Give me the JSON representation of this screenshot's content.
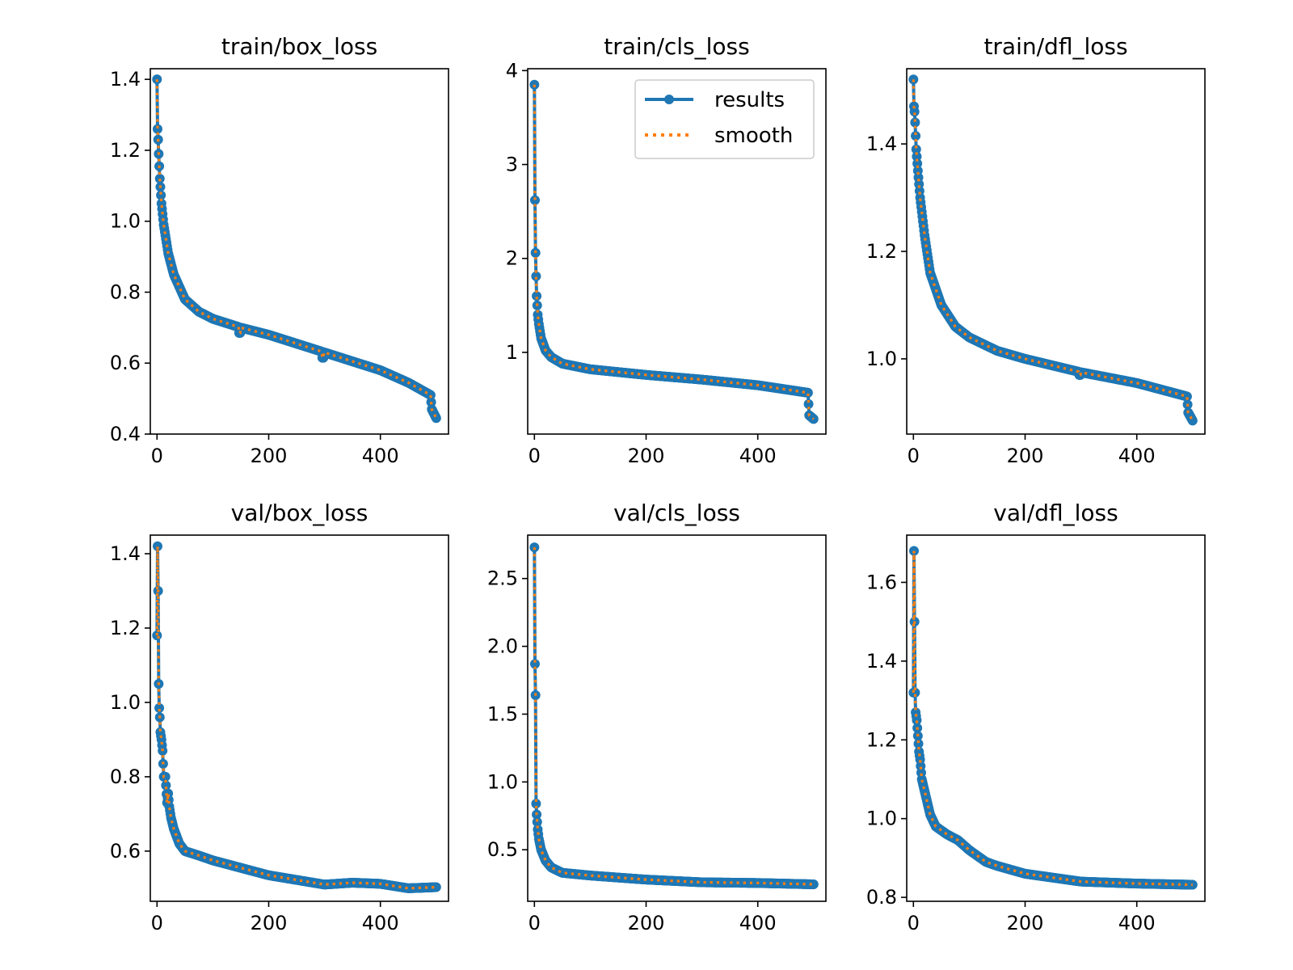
{
  "colors": {
    "results": "#1f77b4",
    "smooth": "#ff7f0e"
  },
  "legend": {
    "results_label": "results",
    "smooth_label": "smooth",
    "location": "upper right of train/cls_loss"
  },
  "chart_data": [
    {
      "type": "line",
      "title": "train/box_loss",
      "xlim": [
        -12,
        522
      ],
      "ylim": [
        0.4,
        1.43
      ],
      "xticks": [
        0,
        200,
        400
      ],
      "yticks": [
        0.4,
        0.6,
        0.8,
        1.0,
        1.2,
        1.4
      ],
      "ytick_labels": [
        "0.4",
        "0.6",
        "0.8",
        "1.0",
        "1.2",
        "1.4"
      ],
      "xtick_labels": [
        "0",
        "200",
        "400"
      ],
      "anchors": [
        [
          0,
          1.4
        ],
        [
          1,
          1.26
        ],
        [
          2,
          1.23
        ],
        [
          3,
          1.19
        ],
        [
          5,
          1.12
        ],
        [
          8,
          1.05
        ],
        [
          12,
          0.99
        ],
        [
          20,
          0.91
        ],
        [
          30,
          0.85
        ],
        [
          50,
          0.78
        ],
        [
          75,
          0.745
        ],
        [
          100,
          0.725
        ],
        [
          150,
          0.7
        ],
        [
          200,
          0.68
        ],
        [
          300,
          0.63
        ],
        [
          400,
          0.58
        ],
        [
          450,
          0.545
        ],
        [
          490,
          0.51
        ],
        [
          492,
          0.47
        ],
        [
          500,
          0.445
        ]
      ],
      "dips": [
        [
          148,
          0.685
        ],
        [
          297,
          0.615
        ]
      ]
    },
    {
      "type": "line",
      "title": "train/cls_loss",
      "xlim": [
        -12,
        522
      ],
      "ylim": [
        0.13,
        4.02
      ],
      "xticks": [
        0,
        200,
        400
      ],
      "yticks": [
        1,
        2,
        3,
        4
      ],
      "ytick_labels": [
        "1",
        "2",
        "3",
        "4"
      ],
      "xtick_labels": [
        "0",
        "200",
        "400"
      ],
      "anchors": [
        [
          0,
          3.85
        ],
        [
          1,
          2.62
        ],
        [
          2,
          2.06
        ],
        [
          3,
          1.81
        ],
        [
          4,
          1.6
        ],
        [
          6,
          1.4
        ],
        [
          8,
          1.3
        ],
        [
          12,
          1.15
        ],
        [
          20,
          1.02
        ],
        [
          30,
          0.95
        ],
        [
          50,
          0.88
        ],
        [
          100,
          0.82
        ],
        [
          150,
          0.79
        ],
        [
          200,
          0.76
        ],
        [
          300,
          0.71
        ],
        [
          400,
          0.65
        ],
        [
          490,
          0.57
        ],
        [
          492,
          0.33
        ],
        [
          500,
          0.29
        ]
      ],
      "dips": []
    },
    {
      "type": "line",
      "title": "train/dfl_loss",
      "xlim": [
        -12,
        522
      ],
      "ylim": [
        0.86,
        1.54
      ],
      "xticks": [
        0,
        200,
        400
      ],
      "yticks": [
        1.0,
        1.2,
        1.4
      ],
      "ytick_labels": [
        "1.0",
        "1.2",
        "1.4"
      ],
      "xtick_labels": [
        "0",
        "200",
        "400"
      ],
      "anchors": [
        [
          0,
          1.52
        ],
        [
          1,
          1.47
        ],
        [
          2,
          1.46
        ],
        [
          3,
          1.44
        ],
        [
          5,
          1.39
        ],
        [
          8,
          1.35
        ],
        [
          12,
          1.3
        ],
        [
          20,
          1.23
        ],
        [
          30,
          1.16
        ],
        [
          50,
          1.1
        ],
        [
          75,
          1.06
        ],
        [
          100,
          1.04
        ],
        [
          150,
          1.015
        ],
        [
          200,
          1.0
        ],
        [
          300,
          0.975
        ],
        [
          400,
          0.955
        ],
        [
          490,
          0.93
        ],
        [
          492,
          0.9
        ],
        [
          500,
          0.885
        ]
      ],
      "dips": [
        [
          298,
          0.97
        ]
      ]
    },
    {
      "type": "line",
      "title": "val/box_loss",
      "xlim": [
        -12,
        522
      ],
      "ylim": [
        0.465,
        1.45
      ],
      "xticks": [
        0,
        200,
        400
      ],
      "yticks": [
        0.6,
        0.8,
        1.0,
        1.2,
        1.4
      ],
      "ytick_labels": [
        "0.6",
        "0.8",
        "1.0",
        "1.2",
        "1.4"
      ],
      "xtick_labels": [
        "0",
        "200",
        "400"
      ],
      "anchors": [
        [
          0,
          1.18
        ],
        [
          1,
          1.42
        ],
        [
          2,
          1.3
        ],
        [
          3,
          1.05
        ],
        [
          4,
          0.985
        ],
        [
          5,
          0.96
        ],
        [
          6,
          0.92
        ],
        [
          8,
          0.9
        ],
        [
          10,
          0.87
        ],
        [
          12,
          0.8
        ],
        [
          15,
          0.8
        ],
        [
          18,
          0.73
        ],
        [
          20,
          0.755
        ],
        [
          22,
          0.72
        ],
        [
          25,
          0.69
        ],
        [
          30,
          0.66
        ],
        [
          40,
          0.62
        ],
        [
          50,
          0.6
        ],
        [
          75,
          0.588
        ],
        [
          100,
          0.575
        ],
        [
          150,
          0.555
        ],
        [
          200,
          0.535
        ],
        [
          300,
          0.51
        ],
        [
          350,
          0.515
        ],
        [
          400,
          0.512
        ],
        [
          450,
          0.5
        ],
        [
          500,
          0.503
        ]
      ],
      "dips": []
    },
    {
      "type": "line",
      "title": "val/cls_loss",
      "xlim": [
        -12,
        522
      ],
      "ylim": [
        0.12,
        2.82
      ],
      "xticks": [
        0,
        200,
        400
      ],
      "yticks": [
        0.5,
        1.0,
        1.5,
        2.0,
        2.5
      ],
      "ytick_labels": [
        "0.5",
        "1.0",
        "1.5",
        "2.0",
        "2.5"
      ],
      "xtick_labels": [
        "0",
        "200",
        "400"
      ],
      "anchors": [
        [
          0,
          2.73
        ],
        [
          1,
          1.87
        ],
        [
          2,
          1.64
        ],
        [
          3,
          0.84
        ],
        [
          4,
          0.76
        ],
        [
          6,
          0.65
        ],
        [
          8,
          0.58
        ],
        [
          12,
          0.5
        ],
        [
          20,
          0.42
        ],
        [
          30,
          0.37
        ],
        [
          50,
          0.33
        ],
        [
          100,
          0.31
        ],
        [
          200,
          0.28
        ],
        [
          300,
          0.26
        ],
        [
          400,
          0.255
        ],
        [
          500,
          0.245
        ]
      ],
      "dips": []
    },
    {
      "type": "line",
      "title": "val/dfl_loss",
      "xlim": [
        -12,
        522
      ],
      "ylim": [
        0.79,
        1.72
      ],
      "xticks": [
        0,
        200,
        400
      ],
      "yticks": [
        0.8,
        1.0,
        1.2,
        1.4,
        1.6
      ],
      "ytick_labels": [
        "0.8",
        "1.0",
        "1.2",
        "1.4",
        "1.6"
      ],
      "xtick_labels": [
        "0",
        "200",
        "400"
      ],
      "anchors": [
        [
          0,
          1.32
        ],
        [
          1,
          1.68
        ],
        [
          2,
          1.5
        ],
        [
          3,
          1.32
        ],
        [
          4,
          1.27
        ],
        [
          6,
          1.25
        ],
        [
          8,
          1.21
        ],
        [
          10,
          1.17
        ],
        [
          12,
          1.15
        ],
        [
          15,
          1.1
        ],
        [
          20,
          1.07
        ],
        [
          25,
          1.04
        ],
        [
          30,
          1.01
        ],
        [
          40,
          0.98
        ],
        [
          60,
          0.96
        ],
        [
          80,
          0.945
        ],
        [
          100,
          0.92
        ],
        [
          130,
          0.89
        ],
        [
          150,
          0.88
        ],
        [
          200,
          0.86
        ],
        [
          250,
          0.85
        ],
        [
          300,
          0.84
        ],
        [
          400,
          0.835
        ],
        [
          500,
          0.832
        ]
      ],
      "dips": []
    }
  ]
}
